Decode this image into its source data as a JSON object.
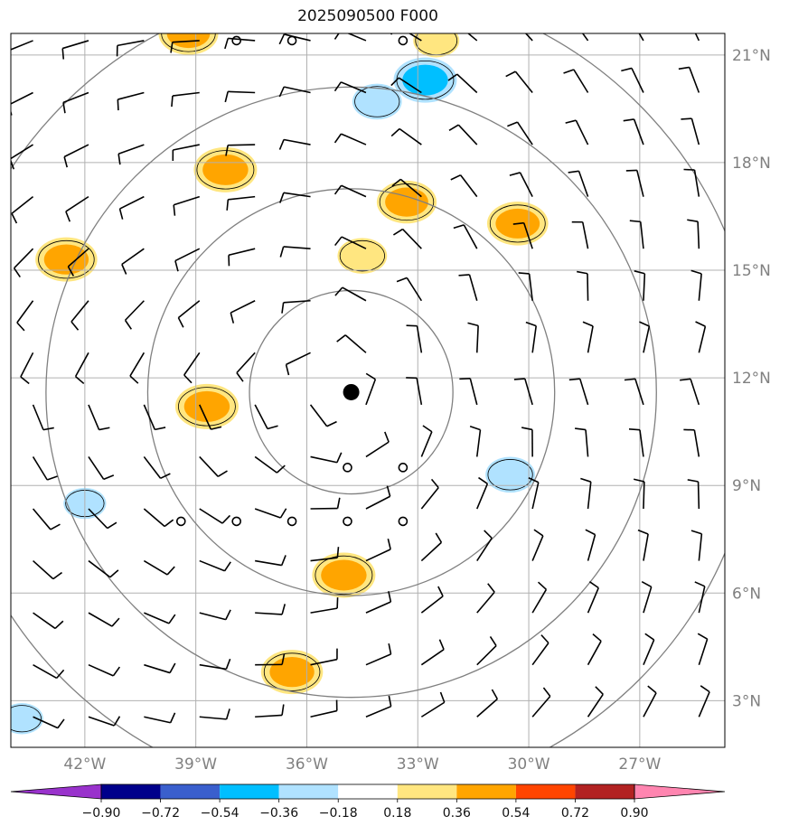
{
  "title": "2025090500 F000",
  "map": {
    "lon_range": [
      -44,
      -24.7
    ],
    "lat_range": [
      1.7,
      21.6
    ],
    "lon_ticks": [
      {
        "lon": -42,
        "label": "42°W"
      },
      {
        "lon": -39,
        "label": "39°W"
      },
      {
        "lon": -36,
        "label": "36°W"
      },
      {
        "lon": -33,
        "label": "33°W"
      },
      {
        "lon": -30,
        "label": "30°W"
      },
      {
        "lon": -27,
        "label": "27°W"
      }
    ],
    "lat_ticks": [
      {
        "lat": 21,
        "label": "21°N"
      },
      {
        "lat": 18,
        "label": "18°N"
      },
      {
        "lat": 15,
        "label": "15°N"
      },
      {
        "lat": 12,
        "label": "12°N"
      },
      {
        "lat": 9,
        "label": "9°N"
      },
      {
        "lat": 6,
        "label": "6°N"
      },
      {
        "lat": 3,
        "label": "3°N"
      }
    ],
    "center": {
      "lon": -34.8,
      "lat": 11.6
    },
    "range_rings_deg": [
      2.75,
      5.5,
      8.25,
      11.0
    ],
    "grid": true,
    "grid_color": "#b0b0b0",
    "ring_color": "#808080"
  },
  "colorbar": {
    "levels": [
      "−0.90",
      "−0.72",
      "−0.54",
      "−0.36",
      "−0.18",
      "0.18",
      "0.36",
      "0.54",
      "0.72",
      "0.90"
    ],
    "colors": [
      "#9932cc",
      "#00008b",
      "#3a5fcd",
      "#00bfff",
      "#b0e2ff",
      "#ffffff",
      "#ffe680",
      "#ffa500",
      "#ff4500",
      "#b22222",
      "#ff85b0"
    ]
  },
  "chart_data": {
    "type": "heatmap",
    "title": "2025090500 F000",
    "anomalies": [
      {
        "lon": -38.2,
        "lat": 17.8,
        "value": 0.5
      },
      {
        "lon": -42.5,
        "lat": 15.3,
        "value": 0.48
      },
      {
        "lon": -33.3,
        "lat": 16.9,
        "value": 0.45
      },
      {
        "lon": -30.3,
        "lat": 16.3,
        "value": 0.47
      },
      {
        "lon": -34.5,
        "lat": 15.4,
        "value": 0.3
      },
      {
        "lon": -38.7,
        "lat": 11.2,
        "value": 0.5
      },
      {
        "lon": -35.0,
        "lat": 6.5,
        "value": 0.5
      },
      {
        "lon": -36.4,
        "lat": 3.8,
        "value": 0.48
      },
      {
        "lon": -39.2,
        "lat": 21.6,
        "value": 0.45
      },
      {
        "lon": -32.5,
        "lat": 21.4,
        "value": 0.25
      },
      {
        "lon": -32.8,
        "lat": 20.3,
        "value": -0.5
      },
      {
        "lon": -34.1,
        "lat": 19.7,
        "value": -0.3
      },
      {
        "lon": -30.5,
        "lat": 9.3,
        "value": -0.3
      },
      {
        "lon": -42.0,
        "lat": 8.5,
        "value": -0.2
      },
      {
        "lon": -43.7,
        "lat": 2.5,
        "value": -0.2
      }
    ],
    "calm_points": [
      [
        -37.9,
        21.4
      ],
      [
        -36.4,
        21.4
      ],
      [
        -33.4,
        21.4
      ],
      [
        -34.9,
        9.5
      ],
      [
        -33.4,
        9.5
      ],
      [
        -39.4,
        8.0
      ],
      [
        -37.9,
        8.0
      ],
      [
        -36.4,
        8.0
      ],
      [
        -34.9,
        8.0
      ],
      [
        -33.4,
        8.0
      ]
    ]
  }
}
